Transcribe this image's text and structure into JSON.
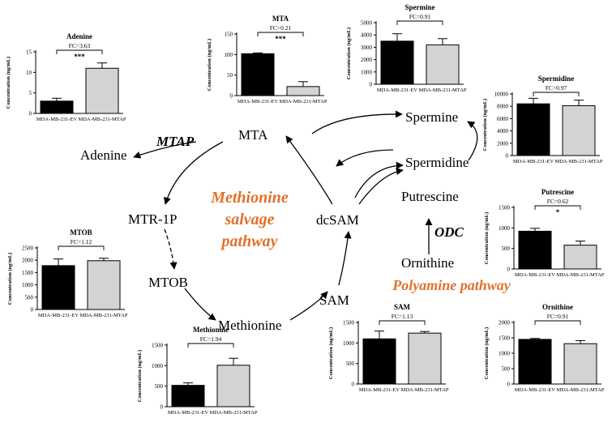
{
  "colors": {
    "ink": "#000000",
    "accent": "#e0712b",
    "bar_ev": "#000000",
    "bar_mtap": "#d3d3d3"
  },
  "pathway": {
    "nodes": {
      "mta": "MTA",
      "adenine": "Adenine",
      "mtr1p": "MTR-1P",
      "mtob": "MTOB",
      "methionine": "Methionine",
      "sam": "SAM",
      "dcsam": "dcSAM",
      "spermine": "Spermine",
      "spermidine": "Spermidine",
      "putrescine": "Putrescine",
      "ornithine": "Ornithine"
    },
    "enzymes": {
      "mtap": "MTAP",
      "odc": "ODC"
    },
    "salvage_title": [
      "Methionine",
      "salvage",
      "pathway"
    ],
    "polyamine_title": "Polyamine pathway"
  },
  "chart_data": [
    {
      "id": "adenine",
      "type": "bar",
      "title": "Adenine",
      "ylabel": "Concentration (ng/mL)",
      "categories": [
        "MDA-MB-231-EV",
        "MDA-MB-231-MTAP"
      ],
      "values": [
        3,
        11
      ],
      "errors": [
        0.7,
        1.3
      ],
      "ylim": [
        0,
        15
      ],
      "yticks": [
        0,
        5,
        10,
        15
      ],
      "fc": "FC=3.63",
      "sig": "***"
    },
    {
      "id": "mta",
      "type": "bar",
      "title": "MTA",
      "ylabel": "Concentration (ng/mL)",
      "categories": [
        "MDA-MB-231-EV",
        "MDA-MB-231-MTAP"
      ],
      "values": [
        102,
        22
      ],
      "errors": [
        2,
        12
      ],
      "ylim": [
        0,
        150
      ],
      "yticks": [
        0,
        50,
        100,
        150
      ],
      "fc": "FC=0.21",
      "sig": "***"
    },
    {
      "id": "spermine",
      "type": "bar",
      "title": "Spermine",
      "ylabel": "Concentration (ng/mL)",
      "categories": [
        "MDA-MB-231-EV",
        "MDA-MB-231-MTAP"
      ],
      "values": [
        3500,
        3200
      ],
      "errors": [
        600,
        500
      ],
      "ylim": [
        0,
        5000
      ],
      "yticks": [
        0,
        1000,
        2000,
        3000,
        4000,
        5000
      ],
      "fc": "FC=0.91",
      "sig": ""
    },
    {
      "id": "spermidine",
      "type": "bar",
      "title": "Spermidine",
      "ylabel": "Concentration (ng/mL)",
      "categories": [
        "MDA-MB-231-EV",
        "MDA-MB-231-MTAP"
      ],
      "values": [
        8400,
        8100
      ],
      "errors": [
        900,
        900
      ],
      "ylim": [
        0,
        10000
      ],
      "yticks": [
        0,
        2000,
        4000,
        6000,
        8000,
        10000
      ],
      "fc": "FC=0.97",
      "sig": ""
    },
    {
      "id": "putrescine",
      "type": "bar",
      "title": "Putrescine",
      "ylabel": "Concentration (ng/mL)",
      "categories": [
        "MDA-MB-231-EV",
        "MDA-MB-231-MTAP"
      ],
      "values": [
        920,
        580
      ],
      "errors": [
        70,
        100
      ],
      "ylim": [
        0,
        1500
      ],
      "yticks": [
        0,
        500,
        1000,
        1500
      ],
      "fc": "FC=0.62",
      "sig": "*"
    },
    {
      "id": "ornithine",
      "type": "bar",
      "title": "Ornithine",
      "ylabel": "Concentration (ng/mL)",
      "categories": [
        "MDA-MB-231-EV",
        "MDA-MB-231-MTAP"
      ],
      "values": [
        1450,
        1310
      ],
      "errors": [
        30,
        100
      ],
      "ylim": [
        0,
        2000
      ],
      "yticks": [
        0,
        500,
        1000,
        1500,
        2000
      ],
      "fc": "FC=0.91",
      "sig": ""
    },
    {
      "id": "sam",
      "type": "bar",
      "title": "SAM",
      "ylabel": "Concentration (ng/mL)",
      "categories": [
        "MDA-MB-231-EV",
        "MDA-MB-231-MTAP"
      ],
      "values": [
        1100,
        1240
      ],
      "errors": [
        190,
        40
      ],
      "ylim": [
        0,
        1500
      ],
      "yticks": [
        0,
        500,
        1000,
        1500
      ],
      "fc": "FC=1.13",
      "sig": ""
    },
    {
      "id": "methionine",
      "type": "bar",
      "title": "Methionine",
      "ylabel": "Concentration (ng/mL)",
      "categories": [
        "MDA-MB-231-EV",
        "MDA-MB-231-MTAP"
      ],
      "values": [
        520,
        1010
      ],
      "errors": [
        60,
        170
      ],
      "ylim": [
        0,
        1500
      ],
      "yticks": [
        0,
        500,
        1000,
        1500
      ],
      "fc": "FC=1.94",
      "sig": ""
    },
    {
      "id": "mtob",
      "type": "bar",
      "title": "MTOB",
      "ylabel": "Concentration (ng/mL)",
      "categories": [
        "MDA-MB-231-EV",
        "MDA-MB-231-MTAP"
      ],
      "values": [
        1780,
        1980
      ],
      "errors": [
        270,
        100
      ],
      "ylim": [
        0,
        2500
      ],
      "yticks": [
        0,
        500,
        1000,
        1500,
        2000,
        2500
      ],
      "fc": "FC=1.12",
      "sig": ""
    }
  ]
}
